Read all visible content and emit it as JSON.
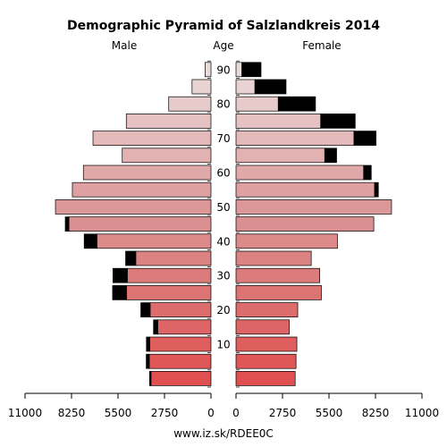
{
  "footer": "www.iz.sk/RDEE0C",
  "chart_data": {
    "type": "bar",
    "title": "Demographic Pyramid of Salzlandkreis 2014",
    "male_label": "Male",
    "age_label": "Age",
    "female_label": "Female",
    "xlim": [
      0,
      11000
    ],
    "x_ticks_left": [
      "11000",
      "8250",
      "5500",
      "2750",
      "0"
    ],
    "x_ticks_right": [
      "0",
      "2750",
      "5500",
      "8250",
      "11000"
    ],
    "x_tick_values": [
      0,
      2750,
      5500,
      8250,
      11000
    ],
    "age_ticks": [
      10,
      20,
      30,
      40,
      50,
      60,
      70,
      80,
      90
    ],
    "age_groups": [
      "0-4",
      "5-9",
      "10-14",
      "15-19",
      "20-24",
      "25-29",
      "30-34",
      "35-39",
      "40-44",
      "45-49",
      "50-54",
      "55-59",
      "60-64",
      "65-69",
      "70-74",
      "75-79",
      "80-84",
      "85-89",
      "90+"
    ],
    "series": [
      {
        "name": "Male",
        "values": [
          3550,
          3650,
          3620,
          3150,
          3600,
          5000,
          4950,
          4450,
          6750,
          8400,
          9200,
          8200,
          7550,
          5250,
          6980,
          5010,
          2500,
          1120,
          350
        ]
      },
      {
        "name": "Male surplus",
        "values": [
          80,
          180,
          200,
          250,
          550,
          820,
          850,
          600,
          750,
          220,
          0,
          0,
          0,
          0,
          0,
          0,
          0,
          0,
          0
        ]
      },
      {
        "name": "Female",
        "values": [
          3500,
          3550,
          3600,
          3150,
          3650,
          5050,
          4950,
          4450,
          6000,
          8150,
          9200,
          8200,
          7550,
          5250,
          6980,
          5010,
          2500,
          1120,
          350
        ]
      },
      {
        "name": "Female surplus",
        "values": [
          0,
          0,
          0,
          0,
          0,
          0,
          0,
          0,
          0,
          0,
          0,
          220,
          450,
          700,
          1300,
          2040,
          2200,
          1840,
          1130
        ]
      }
    ],
    "colors": {
      "young": "#e05050",
      "mid": "#da9090",
      "old": "#ebdada",
      "surplus": "#000000",
      "axis": "#000000"
    }
  }
}
